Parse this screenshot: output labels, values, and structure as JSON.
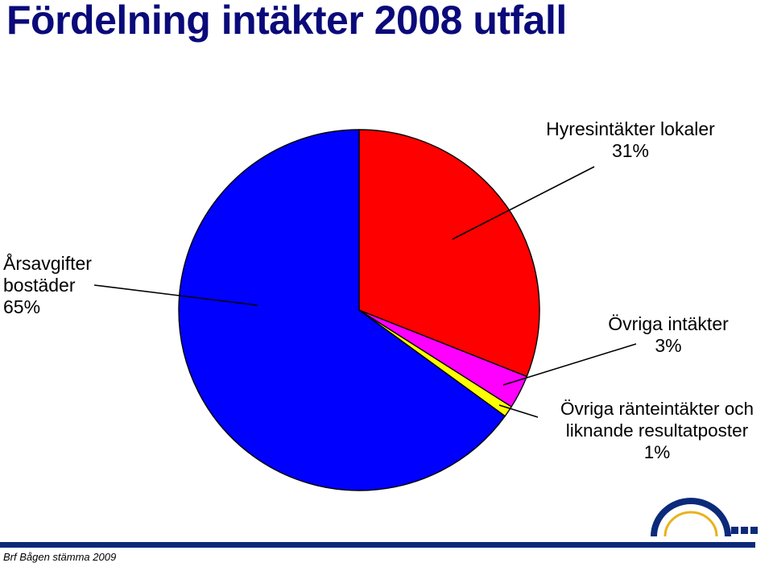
{
  "title": "Fördelning intäkter 2008 utfall",
  "footer": "Brf Bågen stämma 2009",
  "colors": {
    "title": "#0a0a7a",
    "footer_bar": "#0b2a7a",
    "logo_arc": "#0b2a7a",
    "logo_arc_inner": "#e8b21a"
  },
  "logo_icon": "arch-logo-icon",
  "chart_data": {
    "type": "pie",
    "start_angle_deg": 0,
    "direction": "clockwise",
    "slices": [
      {
        "name": "Hyresintäkter lokaler",
        "value": 31,
        "color": "#ff0000",
        "label_lines": [
          "Hyresintäkter lokaler",
          "31%"
        ]
      },
      {
        "name": "Övriga intäkter",
        "value": 3,
        "color": "#ff00ff",
        "label_lines": [
          "Övriga intäkter",
          "3%"
        ]
      },
      {
        "name": "Övriga ränteintäkter och liknande resultatposter",
        "value": 1,
        "color": "#ffff00",
        "label_lines": [
          "Övriga ränteintäkter och",
          "liknande resultatposter",
          "1%"
        ]
      },
      {
        "name": "Årsavgifter bostäder",
        "value": 65,
        "color": "#0000ff",
        "label_lines": [
          "Årsavgifter",
          "bostäder",
          "65%"
        ]
      }
    ]
  }
}
